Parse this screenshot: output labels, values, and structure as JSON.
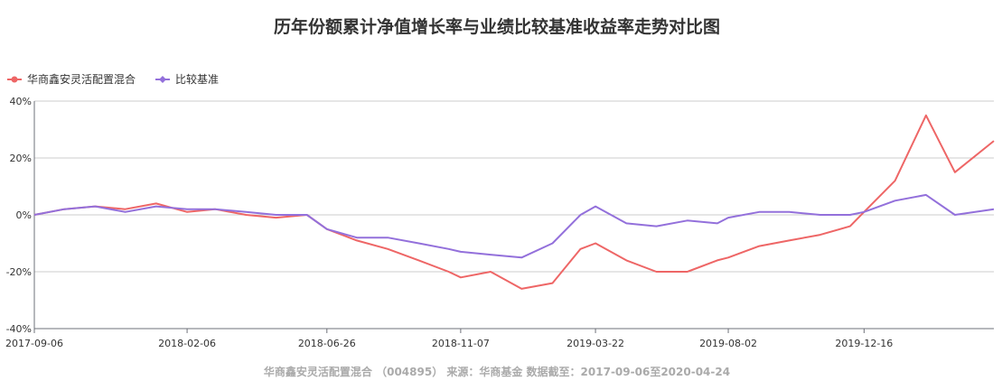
{
  "chart_data": {
    "type": "line",
    "title": "历年份额累计净值增长率与业绩比较基准收益率走势对比图",
    "footer": "华商鑫安灵活配置混合 （004895） 来源：华商基金 数据截至：2017-09-06至2020-04-24",
    "xlabel": "",
    "ylabel": "",
    "x_ticks": [
      "2017-09-06",
      "2018-02-06",
      "2018-06-26",
      "2018-11-07",
      "2019-03-22",
      "2019-08-02",
      "2019-12-16"
    ],
    "y_ticks": [
      "40%",
      "20%",
      "0%",
      "-20%",
      "-40%"
    ],
    "ylim": [
      -40,
      40
    ],
    "grid": true,
    "legend_position": "top-left",
    "x": [
      "2017-09-06",
      "2017-10-06",
      "2017-11-06",
      "2017-12-06",
      "2018-01-06",
      "2018-02-06",
      "2018-03-06",
      "2018-04-06",
      "2018-05-06",
      "2018-06-06",
      "2018-06-26",
      "2018-07-26",
      "2018-08-26",
      "2018-09-26",
      "2018-10-26",
      "2018-11-07",
      "2018-12-07",
      "2019-01-07",
      "2019-02-07",
      "2019-03-07",
      "2019-03-22",
      "2019-04-22",
      "2019-05-22",
      "2019-06-22",
      "2019-07-22",
      "2019-08-02",
      "2019-09-02",
      "2019-10-02",
      "2019-11-02",
      "2019-12-02",
      "2019-12-16",
      "2020-01-16",
      "2020-02-16",
      "2020-03-16",
      "2020-04-24"
    ],
    "series": [
      {
        "name": "华商鑫安灵活配置混合",
        "color": "#ee6666",
        "values": [
          0,
          2,
          3,
          2,
          4,
          1,
          2,
          0,
          -1,
          0,
          -5,
          -9,
          -12,
          -16,
          -20,
          -22,
          -20,
          -26,
          -24,
          -12,
          -10,
          -16,
          -20,
          -20,
          -16,
          -15,
          -11,
          -9,
          -7,
          -4,
          1,
          12,
          35,
          15,
          26
        ]
      },
      {
        "name": "比较基准",
        "color": "#9370db",
        "values": [
          0,
          2,
          3,
          1,
          3,
          2,
          2,
          1,
          0,
          0,
          -5,
          -8,
          -8,
          -10,
          -12,
          -13,
          -14,
          -15,
          -10,
          0,
          3,
          -3,
          -4,
          -2,
          -3,
          -1,
          1,
          1,
          0,
          0,
          1,
          5,
          7,
          0,
          2
        ]
      }
    ]
  }
}
